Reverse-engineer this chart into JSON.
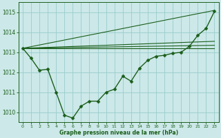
{
  "background_color": "#cce8e8",
  "grid_color": "#99cccc",
  "line_color": "#1a5e1a",
  "title": "Graphe pression niveau de la mer (hPa)",
  "xlim": [
    -0.5,
    23.5
  ],
  "ylim": [
    1009.5,
    1015.5
  ],
  "yticks": [
    1010,
    1011,
    1012,
    1013,
    1014,
    1015
  ],
  "xticks": [
    0,
    1,
    2,
    3,
    4,
    5,
    6,
    7,
    8,
    9,
    10,
    11,
    12,
    13,
    14,
    15,
    16,
    17,
    18,
    19,
    20,
    21,
    22,
    23
  ],
  "main_series": {
    "x": [
      0,
      1,
      2,
      3,
      4,
      5,
      6,
      7,
      8,
      9,
      10,
      11,
      12,
      13,
      14,
      15,
      16,
      17,
      18,
      19,
      20,
      21,
      22,
      23
    ],
    "y": [
      1013.2,
      1012.7,
      1012.1,
      1012.15,
      1011.0,
      1009.85,
      1009.7,
      1010.3,
      1010.55,
      1010.55,
      1011.0,
      1011.15,
      1011.8,
      1011.55,
      1012.2,
      1012.6,
      1012.8,
      1012.85,
      1012.95,
      1013.0,
      1013.3,
      1013.85,
      1014.2,
      1015.05
    ],
    "marker": "D",
    "markersize": 2.5,
    "linewidth": 1.0
  },
  "trend_lines": [
    {
      "x": [
        0,
        23
      ],
      "y": [
        1013.2,
        1015.1
      ]
    },
    {
      "x": [
        0,
        23
      ],
      "y": [
        1013.2,
        1013.55
      ]
    },
    {
      "x": [
        0,
        23
      ],
      "y": [
        1013.2,
        1013.2
      ]
    },
    {
      "x": [
        0,
        23
      ],
      "y": [
        1013.2,
        1013.35
      ]
    }
  ]
}
